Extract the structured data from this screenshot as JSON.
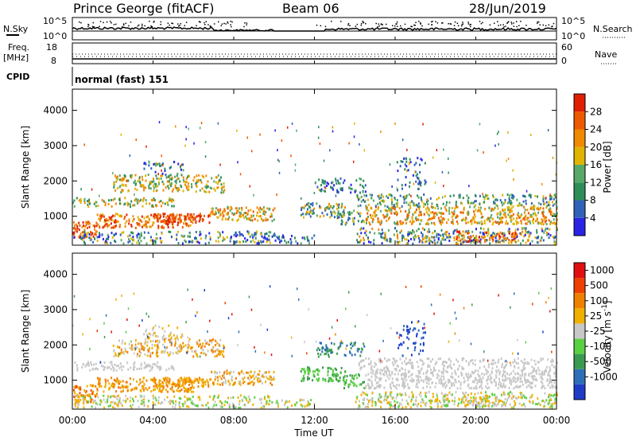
{
  "header": {
    "station": "Prince George (fitACF)",
    "beam": "Beam 06",
    "date": "28/Jun/2019"
  },
  "panels": {
    "nsky": {
      "label": "N.Sky",
      "ticks": [
        "10^5",
        "10^0"
      ],
      "right_label": "N.Search",
      "right_ticks": [
        "10^5",
        "10^0"
      ]
    },
    "freq": {
      "label_line1": "Freq.",
      "label_line2": "[MHz]",
      "ticks": [
        "18",
        "8"
      ],
      "right_label": "Nave",
      "right_ticks": [
        "60",
        "0"
      ]
    },
    "cpid": {
      "label": "CPID",
      "text": "normal (fast) 151"
    }
  },
  "chart_data": [
    {
      "type": "heatmap",
      "title": "",
      "xlabel": "",
      "ylabel": "Slant Range [km]",
      "ylim": [
        180,
        4600
      ],
      "x_ticks": [
        "00:00",
        "04:00",
        "08:00",
        "12:00",
        "16:00",
        "20:00",
        "00:00"
      ],
      "y_ticks": [
        1000,
        2000,
        3000,
        4000
      ],
      "colorbar": {
        "label": "Power [dB]",
        "ticks": [
          4,
          8,
          12,
          16,
          20,
          24,
          28
        ],
        "colors": [
          "#2a23e6",
          "#2f62b8",
          "#2e8e58",
          "#58a86a",
          "#e0b400",
          "#f08a00",
          "#ee5a00",
          "#e02000"
        ]
      }
    },
    {
      "type": "heatmap",
      "title": "",
      "xlabel": "Time UT",
      "ylabel": "Slant Range [km]",
      "ylim": [
        180,
        4600
      ],
      "x_ticks": [
        "00:00",
        "04:00",
        "08:00",
        "12:00",
        "16:00",
        "20:00",
        "00:00"
      ],
      "y_ticks": [
        1000,
        2000,
        3000,
        4000
      ],
      "colorbar": {
        "label": "Velocity [m s^-1]",
        "ticks": [
          "1000",
          "500",
          "100",
          "25",
          "-25",
          "-100",
          "-500",
          "-1000"
        ],
        "colors": [
          "#1f3cc8",
          "#2e6eb8",
          "#3a9a50",
          "#5ad040",
          "#c8c8c8",
          "#f0b000",
          "#f08000",
          "#ee4000",
          "#e01010"
        ]
      }
    }
  ]
}
